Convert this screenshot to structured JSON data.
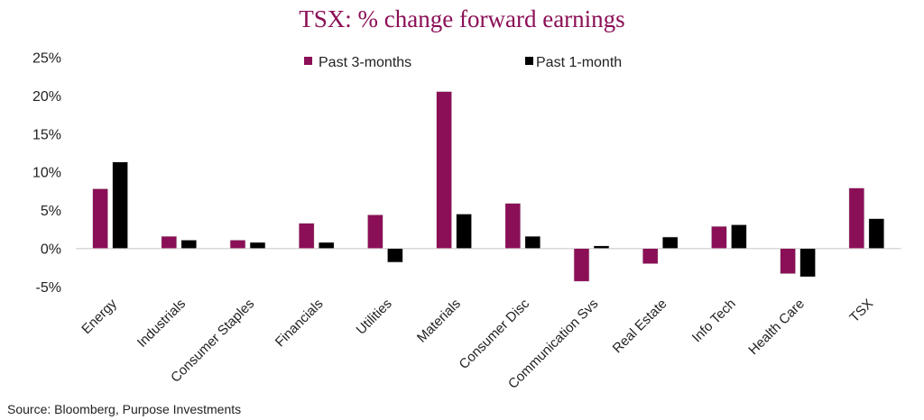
{
  "chart_data": {
    "type": "bar",
    "title": "TSX: % change forward earnings",
    "categories": [
      "Energy",
      "Industrials",
      "Consumer Staples",
      "Financials",
      "Utilities",
      "Materials",
      "Consumer Disc",
      "Communication Svs",
      "Real Estate",
      "Info Tech",
      "Health Care",
      "TSX"
    ],
    "series": [
      {
        "name": "Past 3-months",
        "color": "#8b0f56",
        "values": [
          7.8,
          1.6,
          1.1,
          3.3,
          4.4,
          20.5,
          5.9,
          -4.3,
          -2.0,
          2.9,
          -3.3,
          7.9
        ]
      },
      {
        "name": "Past 1-month",
        "color": "#000000",
        "values": [
          11.3,
          1.1,
          0.8,
          0.8,
          -1.8,
          4.5,
          1.6,
          0.35,
          1.5,
          3.1,
          -3.7,
          3.9
        ]
      }
    ],
    "yticks": [
      "25%",
      "20%",
      "15%",
      "10%",
      "5%",
      "0%",
      "-5%"
    ],
    "ytick_values": [
      25,
      20,
      15,
      10,
      5,
      0,
      -5
    ],
    "ylim": [
      -5,
      25
    ],
    "xlabel": "",
    "ylabel": "",
    "grid": false,
    "legend": "top-center"
  },
  "source": "Source: Bloomberg, Purpose Investments"
}
